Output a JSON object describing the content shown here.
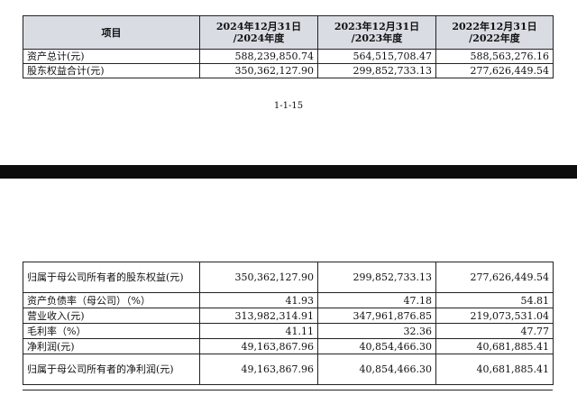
{
  "top_table": {
    "headers": [
      "项目",
      "2024年12月31日\n/2024年度",
      "2023年12月31日\n/2023年度",
      "2022年12月31日\n/2022年度"
    ],
    "rows": [
      {
        "label": "资产总计(元)",
        "values": [
          "588,239,850.74",
          "564,515,708.47",
          "588,563,276.16"
        ]
      },
      {
        "label": "股东权益合计(元)",
        "values": [
          "350,362,127.90",
          "299,852,733.13",
          "277,626,449.54"
        ]
      }
    ]
  },
  "page_number": "1-1-15",
  "bottom_table": {
    "rows": [
      {
        "label": "归属于母公司所有者的股东权益(元)",
        "values": [
          "350,362,127.90",
          "299,852,733.13",
          "277,626,449.54"
        ],
        "tall": true
      },
      {
        "label": "资产负债率（母公司）（%）",
        "values": [
          "41.93",
          "47.18",
          "54.81"
        ]
      },
      {
        "label": "营业收入(元)",
        "values": [
          "313,982,314.91",
          "347,961,876.85",
          "219,073,531.04"
        ]
      },
      {
        "label": "毛利率（%）",
        "values": [
          "41.11",
          "32.36",
          "47.77"
        ]
      },
      {
        "label": "净利润(元)",
        "values": [
          "49,163,867.96",
          "40,854,466.30",
          "40,681,885.41"
        ]
      },
      {
        "label": "归属于母公司所有者的净利润(元)",
        "values": [
          "49,163,867.96",
          "40,854,466.30",
          "40,681,885.41"
        ],
        "tall": true
      }
    ]
  }
}
